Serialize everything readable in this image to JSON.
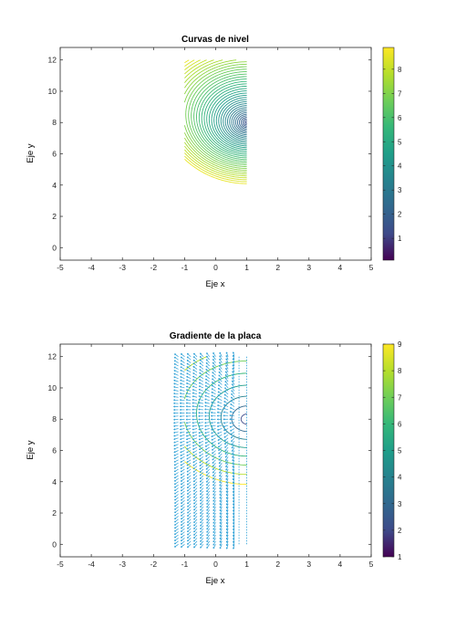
{
  "chart_data": [
    {
      "type": "contour",
      "title": "Curvas de nivel",
      "xlabel": "Eje x",
      "ylabel": "Eje y",
      "xlim": [
        -5,
        5
      ],
      "ylim": [
        -0.8,
        12.8
      ],
      "xticks": [
        -5,
        -4,
        -3,
        -2,
        -1,
        0,
        1,
        2,
        3,
        4,
        5
      ],
      "yticks": [
        0,
        2,
        4,
        6,
        8,
        10,
        12
      ],
      "domain": {
        "x": [
          -1,
          1
        ],
        "y": [
          0,
          12
        ]
      },
      "singular_point": [
        1,
        8
      ],
      "levels": [
        0.2,
        0.4,
        0.6,
        0.8,
        1.0,
        1.2,
        1.4,
        1.6,
        1.8,
        2.0,
        2.2,
        2.4,
        2.6,
        2.8,
        3.0,
        3.2,
        3.4,
        3.6,
        3.8,
        4.0,
        4.2,
        4.4,
        4.6,
        4.8,
        5.0,
        5.2,
        5.4,
        5.6,
        5.8,
        6.0,
        6.2,
        6.4,
        6.6,
        6.8,
        7.0,
        7.2,
        7.4,
        7.6,
        7.8,
        8.0,
        8.2,
        8.4,
        8.6
      ],
      "colorbar": {
        "range": [
          0.1,
          8.9
        ],
        "ticks": [
          "1",
          "2",
          "3",
          "4",
          "5",
          "6",
          "7",
          "8"
        ]
      },
      "colormap": [
        "#440154",
        "#3e4a89",
        "#31688e",
        "#26828e",
        "#1f9e89",
        "#35b779",
        "#6ece58",
        "#b5de2b",
        "#fde725"
      ]
    },
    {
      "type": "quiver",
      "title": "Gradiente de la placa",
      "xlabel": "Eje x",
      "ylabel": "Eje y",
      "xlim": [
        -5,
        5
      ],
      "ylim": [
        -0.8,
        12.8
      ],
      "xticks": [
        -5,
        -4,
        -3,
        -2,
        -1,
        0,
        1,
        2,
        3,
        4,
        5
      ],
      "yticks": [
        0,
        2,
        4,
        6,
        8,
        10,
        12
      ],
      "grid_x": [
        -1.2,
        -1.0,
        -0.8,
        -0.6,
        -0.4,
        -0.2,
        0.0,
        0.2,
        0.4,
        0.6
      ],
      "grid_y_step": 0.2,
      "grid_y_range": [
        0,
        12
      ],
      "dashed_x": [
        0.75,
        1.0
      ],
      "contour_levels": [
        1,
        2,
        3,
        4,
        5,
        6,
        7,
        8,
        9
      ],
      "colorbar": {
        "range": [
          1,
          9
        ],
        "ticks": [
          "1",
          "2",
          "3",
          "4",
          "5",
          "6",
          "7",
          "8",
          "9"
        ]
      },
      "arrow_color": "#2a9fd6",
      "colormap": [
        "#440154",
        "#3e4a89",
        "#31688e",
        "#26828e",
        "#1f9e89",
        "#35b779",
        "#6ece58",
        "#b5de2b",
        "#fde725"
      ]
    }
  ]
}
